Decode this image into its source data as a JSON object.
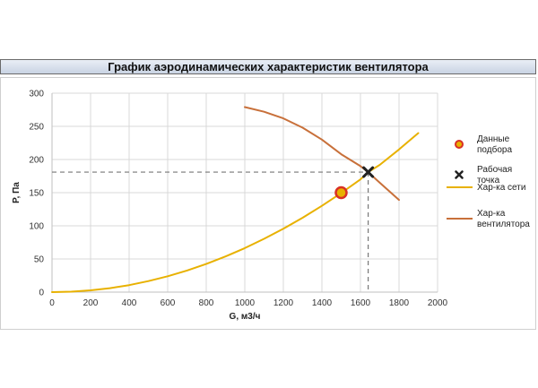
{
  "title": "График аэродинамических характеристик вентилятора",
  "chart_data": {
    "type": "line",
    "title": "График аэродинамических характеристик вентилятора",
    "xlabel": "G, м3/ч",
    "ylabel": "P, Па",
    "xlim": [
      0,
      2000
    ],
    "ylim": [
      0,
      300
    ],
    "xticks": [
      0,
      200,
      400,
      600,
      800,
      1000,
      1200,
      1400,
      1600,
      1800,
      2000
    ],
    "yticks": [
      0,
      50,
      100,
      150,
      200,
      250,
      300
    ],
    "grid": true,
    "legend_position": "right",
    "series": [
      {
        "name": "Хар-ка сети",
        "color": "#e8b100",
        "x": [
          0,
          100,
          200,
          300,
          400,
          500,
          600,
          700,
          800,
          900,
          1000,
          1100,
          1200,
          1300,
          1400,
          1500,
          1600,
          1640,
          1700,
          1800,
          1900
        ],
        "y": [
          0,
          0.7,
          2.7,
          6.0,
          10.6,
          16.6,
          23.9,
          32.6,
          42.5,
          53.8,
          66.4,
          80.4,
          95.6,
          112.2,
          130.2,
          149.4,
          170.0,
          181.0,
          191.9,
          215.2,
          239.8
        ]
      },
      {
        "name": "Хар-ка вентилятора",
        "color": "#c8703a",
        "x": [
          1000,
          1100,
          1200,
          1300,
          1400,
          1500,
          1600,
          1640,
          1700,
          1800
        ],
        "y": [
          279,
          272,
          262,
          248,
          230,
          208,
          190,
          181,
          165,
          139
        ]
      }
    ],
    "points": [
      {
        "name": "Данные подбора",
        "x": 1500,
        "y": 150,
        "marker": "circle",
        "color": "#e8b100",
        "edge": "#d93025"
      },
      {
        "name": "Рабочая точка",
        "x": 1640,
        "y": 181,
        "marker": "x",
        "color": "#222222"
      }
    ],
    "reference_lines": {
      "x": 1640,
      "y": 181,
      "style": "dashed",
      "color": "#777777"
    },
    "legend": [
      {
        "label_lines": [
          "Данные",
          "подбора"
        ],
        "kind": "circle",
        "color": "#e8b100",
        "edge": "#d93025"
      },
      {
        "label_lines": [
          "Рабочая",
          "точка"
        ],
        "kind": "x",
        "color": "#222222"
      },
      {
        "label_lines": [
          "Хар-ка сети"
        ],
        "kind": "line",
        "color": "#e8b100"
      },
      {
        "label_lines": [
          "Хар-ка",
          "вентилятора"
        ],
        "kind": "line",
        "color": "#c8703a"
      }
    ]
  }
}
